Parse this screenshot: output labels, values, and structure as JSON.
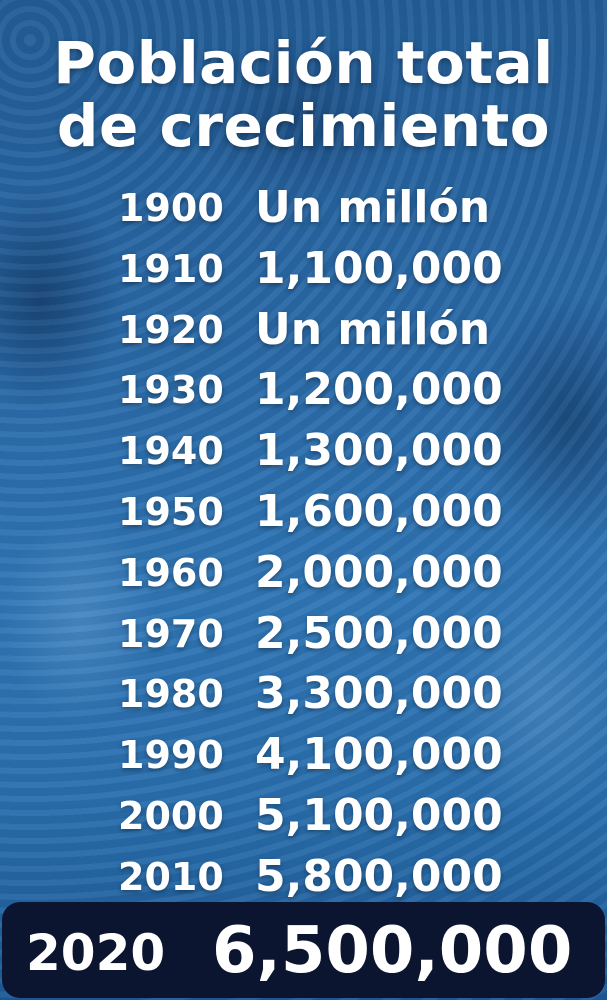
{
  "title": {
    "line1": "Población total",
    "line2": "de crecimiento"
  },
  "rows": [
    {
      "year": "1900",
      "value": "Un millón"
    },
    {
      "year": "1910",
      "value": "1,100,000"
    },
    {
      "year": "1920",
      "value": "Un millón"
    },
    {
      "year": "1930",
      "value": "1,200,000"
    },
    {
      "year": "1940",
      "value": "1,300,000"
    },
    {
      "year": "1950",
      "value": "1,600,000"
    },
    {
      "year": "1960",
      "value": "2,000,000"
    },
    {
      "year": "1970",
      "value": "2,500,000"
    },
    {
      "year": "1980",
      "value": "3,300,000"
    },
    {
      "year": "1990",
      "value": "4,100,000"
    },
    {
      "year": "2000",
      "value": "5,100,000"
    },
    {
      "year": "2010",
      "value": "5,800,000"
    }
  ],
  "highlight": {
    "year": "2020",
    "value": "6,500,000"
  },
  "colors": {
    "background": "#2a6aa8",
    "highlight_bg": "#0c1530",
    "text": "#ffffff"
  }
}
